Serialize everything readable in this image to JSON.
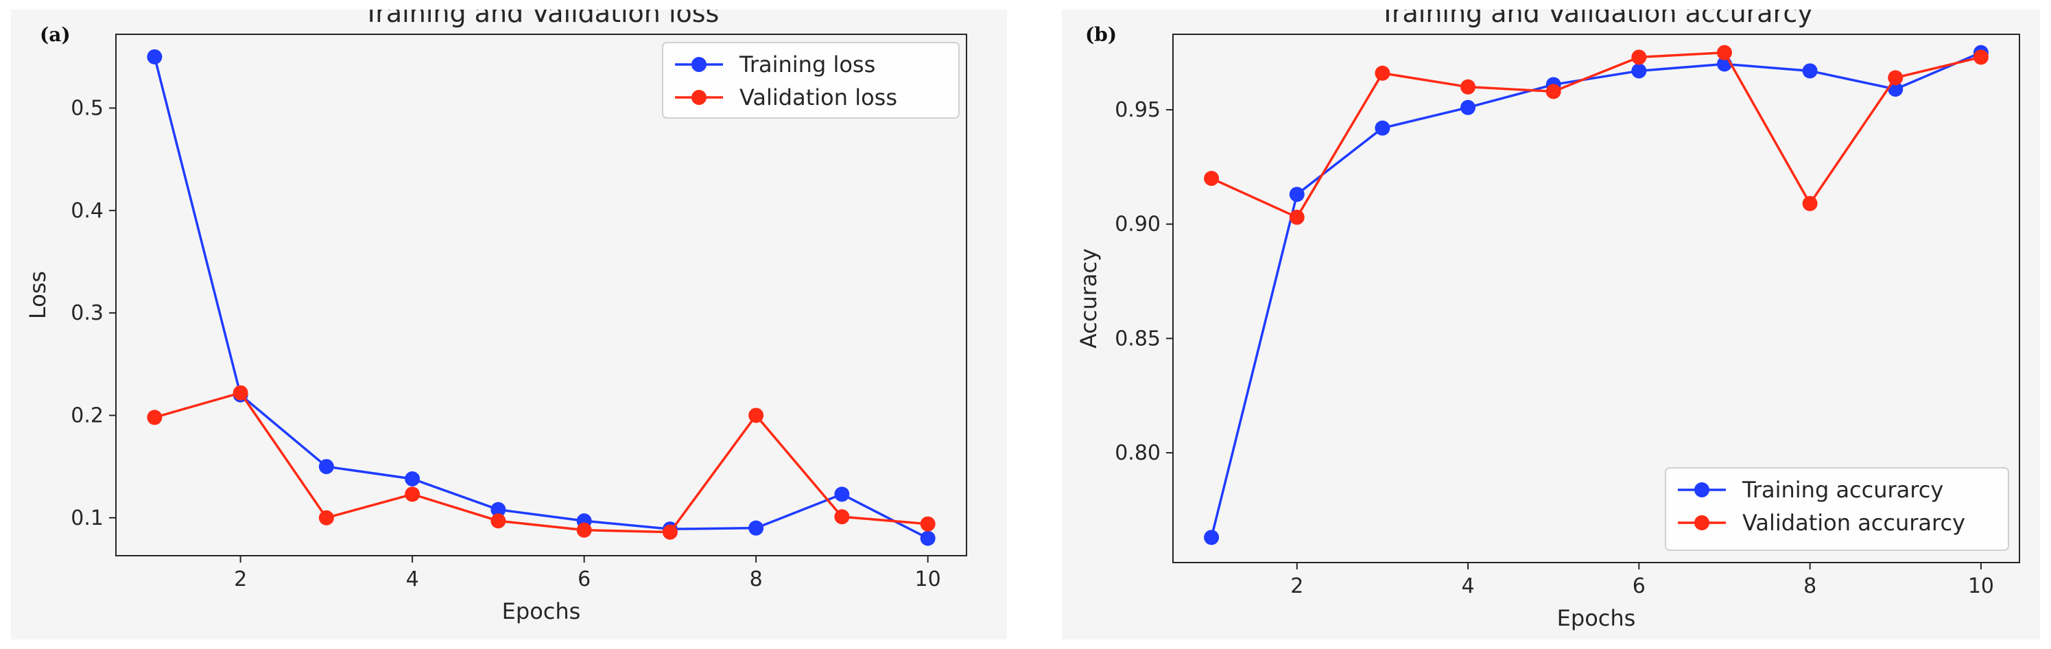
{
  "chart_data": [
    {
      "type": "line",
      "panel_label": "(a)",
      "title": "Training and Validation loss",
      "xlabel": "Epochs",
      "ylabel": "Loss",
      "xlim": [
        0.55,
        10.45
      ],
      "ylim": [
        0.063,
        0.572
      ],
      "xticks": [
        2,
        4,
        6,
        8,
        10
      ],
      "yticks": [
        0.1,
        0.2,
        0.3,
        0.4,
        0.5
      ],
      "grid": false,
      "legend_position": "top-right",
      "x": [
        1,
        2,
        3,
        4,
        5,
        6,
        7,
        8,
        9,
        10
      ],
      "series": [
        {
          "name": "Training loss",
          "color": "#1f3cff",
          "values": [
            0.55,
            0.22,
            0.15,
            0.138,
            0.108,
            0.097,
            0.089,
            0.09,
            0.123,
            0.08
          ]
        },
        {
          "name": "Validation loss",
          "color": "#ff2a14",
          "values": [
            0.198,
            0.222,
            0.1,
            0.123,
            0.097,
            0.088,
            0.086,
            0.2,
            0.101,
            0.094
          ]
        }
      ]
    },
    {
      "type": "line",
      "panel_label": "(b)",
      "title": "Training and Validation accurarcy",
      "xlabel": "Epochs",
      "ylabel": "Accuracy",
      "xlim": [
        0.55,
        10.45
      ],
      "ylim": [
        0.752,
        0.983
      ],
      "xticks": [
        2,
        4,
        6,
        8,
        10
      ],
      "yticks": [
        0.8,
        0.85,
        0.9,
        0.95
      ],
      "grid": false,
      "legend_position": "bottom-right",
      "x": [
        1,
        2,
        3,
        4,
        5,
        6,
        7,
        8,
        9,
        10
      ],
      "series": [
        {
          "name": "Training accurarcy",
          "color": "#1f3cff",
          "values": [
            0.763,
            0.913,
            0.942,
            0.951,
            0.961,
            0.967,
            0.97,
            0.967,
            0.959,
            0.975
          ]
        },
        {
          "name": "Validation accurarcy",
          "color": "#ff2a14",
          "values": [
            0.92,
            0.903,
            0.966,
            0.96,
            0.958,
            0.973,
            0.975,
            0.909,
            0.964,
            0.973
          ]
        }
      ]
    }
  ]
}
